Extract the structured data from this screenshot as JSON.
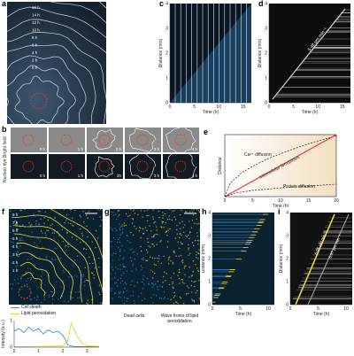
{
  "panels": {
    "a": {
      "letter": "a",
      "time_labels": [
        "16 h",
        "14 h",
        "12 h",
        "10 h",
        "8 h",
        "6 h",
        "4 h",
        "2 h",
        "0 h"
      ]
    },
    "c": {
      "letter": "c",
      "ylabel": "Distance (mm)",
      "xlabel": "Time (h)",
      "yticks": [
        "0",
        "1",
        "2",
        "3",
        "4"
      ],
      "xticks": [
        "0",
        "5",
        "10",
        "15"
      ]
    },
    "d": {
      "letter": "d",
      "ylabel": "Distance (mm)",
      "xlabel": "Time (h)",
      "yticks": [
        "0",
        "1",
        "2",
        "3",
        "4"
      ],
      "xticks": [
        "0",
        "5",
        "10",
        "15"
      ],
      "speed_label": "5.48 μm min⁻¹"
    },
    "b": {
      "letter": "b",
      "row_labels": [
        "Bright field",
        "Nuclear dye"
      ],
      "times_top": [
        "0 h",
        "1 h",
        "2 h",
        "3 h",
        "4 h"
      ],
      "times_bottom": [
        "0 h",
        "1 h",
        "2h",
        "3 h",
        "4 h"
      ]
    },
    "e": {
      "letter": "e",
      "ylabel": "Distance",
      "xlabel": "Time (h)",
      "xticks": [
        "0",
        "5",
        "10",
        "15",
        "20"
      ],
      "labels": [
        "Ca²⁺ diffusion",
        "Intercellular ferroptosis",
        "Protein diffusion"
      ]
    },
    "f": {
      "letter": "f",
      "time_labels": [
        "8 h",
        "7 h",
        "6 h",
        "5 h",
        "4 h",
        "3 h",
        "2 h",
        "1 h"
      ],
      "legend": [
        "Cell death",
        "Lipid peroxidation"
      ],
      "ylabel": "Intensity (a.u.)",
      "xticks": [
        "0",
        "1",
        "2",
        "3"
      ],
      "yticks": [
        "0",
        "1"
      ]
    },
    "g": {
      "letter": "g",
      "labels": [
        "Dead cells",
        "Wave fronts of lipid peroxidation"
      ]
    },
    "h": {
      "letter": "h",
      "ylabel": "Distance (mm)",
      "xlabel": "Time (h)",
      "yticks": [
        "0",
        "1",
        "2",
        "3",
        "4"
      ],
      "xticks": [
        "0",
        "5",
        "10"
      ]
    },
    "i": {
      "letter": "i",
      "ylabel": "Distance (mm)",
      "xlabel": "Time (h)",
      "yticks": [
        "0",
        "1",
        "2",
        "3",
        "4"
      ],
      "xticks": [
        "0",
        "5",
        "10"
      ],
      "speed_labels": [
        "6.05 μm min⁻¹",
        "5.87 μm min⁻¹"
      ]
    }
  },
  "colors": {
    "cell_death": "#3b8fd6",
    "lipid": "#e6d23a",
    "red": "#e23a2e",
    "contour": "#e8eef6"
  },
  "chart_data": [
    {
      "type": "line",
      "title": "",
      "xlabel": "Time (h)",
      "ylabel": "Distance",
      "xlim": [
        0,
        20
      ],
      "series": [
        {
          "name": "Ca²⁺ diffusion",
          "x": [
            0,
            1,
            3,
            5,
            8,
            12,
            16,
            20
          ],
          "y": [
            0,
            0.22,
            0.38,
            0.49,
            0.62,
            0.76,
            0.88,
            0.98
          ]
        },
        {
          "name": "Intercellular ferroptosis",
          "x": [
            0,
            5,
            10,
            15,
            20
          ],
          "y": [
            0,
            0.25,
            0.5,
            0.75,
            1.0
          ]
        },
        {
          "name": "Protein diffusion",
          "x": [
            0,
            2,
            5,
            10,
            15,
            20
          ],
          "y": [
            0,
            0.06,
            0.1,
            0.14,
            0.17,
            0.2
          ]
        }
      ]
    },
    {
      "type": "line",
      "title": "",
      "ylabel": "Intensity (a.u.)",
      "xlim": [
        0,
        3.5
      ],
      "ylim": [
        0,
        1
      ],
      "series": [
        {
          "name": "Cell death",
          "x": [
            0,
            0.2,
            0.4,
            0.6,
            0.8,
            1.0,
            1.2,
            1.4,
            1.6,
            1.8,
            2.0,
            2.1,
            2.2,
            2.3,
            2.5,
            3.0,
            3.5
          ],
          "y": [
            0.6,
            0.7,
            0.55,
            0.75,
            0.6,
            0.7,
            0.5,
            0.65,
            0.55,
            0.6,
            0.45,
            0.3,
            0.1,
            0.05,
            0.02,
            0.02,
            0.02
          ]
        },
        {
          "name": "Lipid peroxidation",
          "x": [
            0,
            0.5,
            1.0,
            1.5,
            2.0,
            2.2,
            2.35,
            2.45,
            2.6,
            2.8,
            3.0,
            3.5
          ],
          "y": [
            0.02,
            0.02,
            0.03,
            0.03,
            0.05,
            0.2,
            0.9,
            0.7,
            0.4,
            0.15,
            0.05,
            0.03
          ]
        }
      ]
    }
  ]
}
